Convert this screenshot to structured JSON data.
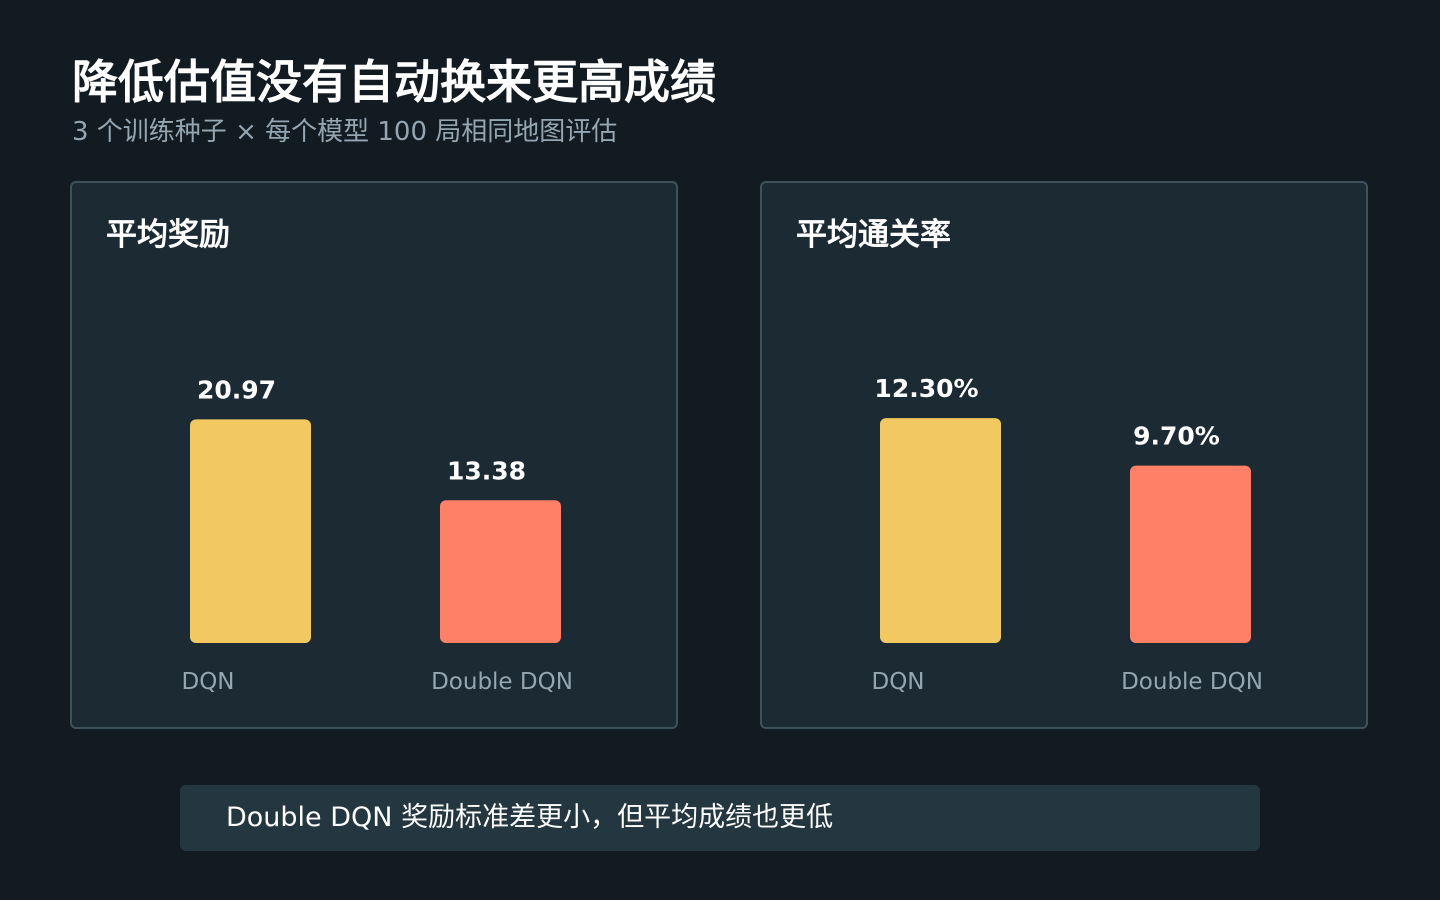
{
  "header": {
    "title": "降低估值没有自动换来更高成绩",
    "subtitle": "3 个训练种子 × 每个模型 100 局相同地图评估"
  },
  "colors": {
    "dqn": "#f2c960",
    "double_dqn": "#ff7f67"
  },
  "chart_data": [
    {
      "type": "bar",
      "title": "平均奖励",
      "categories": [
        "DQN",
        "Double DQN"
      ],
      "values": [
        20.97,
        13.38
      ],
      "labels": [
        "20.97",
        "13.38"
      ],
      "colors": [
        "#f2c960",
        "#ff7f67"
      ],
      "ylim": [
        0,
        30
      ],
      "grid": false
    },
    {
      "type": "bar",
      "title": "平均通关率",
      "categories": [
        "DQN",
        "Double DQN"
      ],
      "values": [
        12.3,
        9.7
      ],
      "labels": [
        "12.30%",
        "9.70%"
      ],
      "colors": [
        "#f2c960",
        "#ff7f67"
      ],
      "ylim": [
        0,
        17.5
      ],
      "grid": false
    }
  ],
  "footer": {
    "note": "Double DQN 奖励标准差更小，但平均成绩也更低"
  }
}
